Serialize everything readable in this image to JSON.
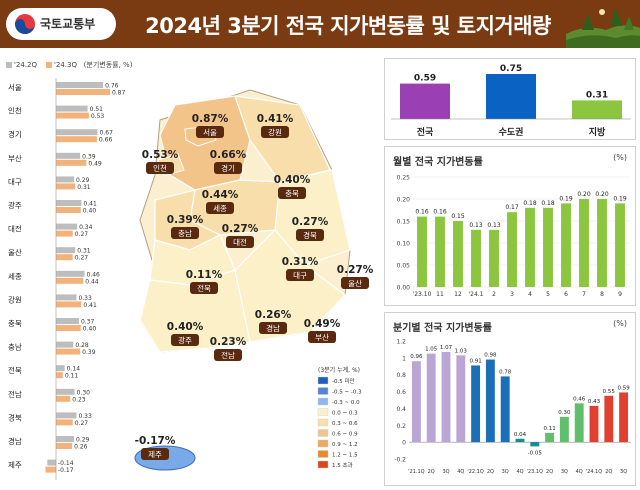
{
  "header": {
    "ministry": "국토교통부",
    "title": "2024년 3분기 전국 지가변동률 및 토지거래량",
    "colors": {
      "background": "#7a3a12",
      "title_text": "#ffffff"
    }
  },
  "left_legend": {
    "items": [
      {
        "label": "'24.2Q",
        "color": "#bdbdbd"
      },
      {
        "label": "'24.3Q",
        "color": "#f2b27a"
      },
      {
        "label": "(분기변동률, %)",
        "color": ""
      }
    ]
  },
  "chart_data": [
    {
      "type": "bar",
      "orientation": "horizontal",
      "categories": [
        "서울",
        "인천",
        "경기",
        "부산",
        "대구",
        "광주",
        "대전",
        "울산",
        "세종",
        "강원",
        "충북",
        "충남",
        "전북",
        "전남",
        "경북",
        "경남",
        "제주"
      ],
      "series": [
        {
          "name": "'24.2Q",
          "values": [
            0.76,
            0.51,
            0.67,
            0.39,
            0.29,
            0.41,
            0.34,
            0.31,
            0.46,
            0.33,
            0.37,
            0.28,
            0.14,
            0.3,
            0.33,
            0.29,
            -0.14
          ]
        },
        {
          "name": "'24.3Q",
          "values": [
            0.87,
            0.53,
            0.66,
            0.49,
            0.31,
            0.4,
            0.27,
            0.27,
            0.44,
            0.41,
            0.4,
            0.39,
            0.11,
            0.23,
            0.27,
            0.26,
            -0.17
          ]
        }
      ],
      "colors": [
        "#bdbdbd",
        "#f2b27a"
      ],
      "xlim": [
        -0.2,
        0.9
      ]
    },
    {
      "type": "map",
      "regions": [
        {
          "name": "서울",
          "value": 0.87
        },
        {
          "name": "인천",
          "value": 0.53
        },
        {
          "name": "경기",
          "value": 0.66
        },
        {
          "name": "강원",
          "value": 0.41
        },
        {
          "name": "세종",
          "value": 0.44
        },
        {
          "name": "충북",
          "value": 0.4
        },
        {
          "name": "충남",
          "value": 0.39
        },
        {
          "name": "대전",
          "value": 0.27
        },
        {
          "name": "경북",
          "value": 0.27
        },
        {
          "name": "대구",
          "value": 0.31
        },
        {
          "name": "전북",
          "value": 0.11
        },
        {
          "name": "울산",
          "value": 0.27
        },
        {
          "name": "광주",
          "value": 0.4
        },
        {
          "name": "경남",
          "value": 0.26
        },
        {
          "name": "부산",
          "value": 0.49
        },
        {
          "name": "전남",
          "value": 0.23
        },
        {
          "name": "제주",
          "value": -0.17
        }
      ],
      "value_suffix": "%",
      "legend_title": "(3분기 누계, %)",
      "legend": [
        {
          "label": "-0.5 미만",
          "color": "#1f5fbf"
        },
        {
          "label": "-0.5 ~ -0.3",
          "color": "#4f86d9"
        },
        {
          "label": "-0.3 ~ 0.0",
          "color": "#8fb8ee"
        },
        {
          "label": "0.0 ~ 0.3",
          "color": "#fcf0c8"
        },
        {
          "label": "0.3 ~ 0.6",
          "color": "#f8deaa"
        },
        {
          "label": "0.6 ~ 0.9",
          "color": "#f2c48a"
        },
        {
          "label": "0.9 ~ 1.2",
          "color": "#eeaa5c"
        },
        {
          "label": "1.2 ~ 1.5",
          "color": "#e98a2a"
        },
        {
          "label": "1.5 초과",
          "color": "#d9481a"
        }
      ]
    },
    {
      "type": "bar",
      "categories": [
        "전국",
        "수도권",
        "지방"
      ],
      "values": [
        0.59,
        0.75,
        0.31
      ],
      "colors": [
        "#9b3fb5",
        "#0a63c2",
        "#8cc63f"
      ],
      "ylim": [
        0,
        0.8
      ]
    },
    {
      "type": "bar",
      "title": "월별 전국 지가변동률",
      "unit": "(%)",
      "categories": [
        "'23.10",
        "11",
        "12",
        "'24.1",
        "2",
        "3",
        "4",
        "5",
        "6",
        "7",
        "8",
        "9"
      ],
      "values": [
        0.16,
        0.16,
        0.15,
        0.13,
        0.13,
        0.17,
        0.18,
        0.18,
        0.19,
        0.2,
        0.2,
        0.19
      ],
      "color": "#8cc63f",
      "ylim": [
        0,
        0.25
      ],
      "yticks": [
        "0.00",
        "0.05",
        "0.10",
        "0.15",
        "0.20",
        "0.25"
      ],
      "grid": true
    },
    {
      "type": "bar",
      "title": "분기별 전국 지가변동률",
      "unit": "(%)",
      "categories": [
        "'21.1Q",
        "2Q",
        "3Q",
        "4Q",
        "'22.1Q",
        "2Q",
        "3Q",
        "4Q",
        "'23.1Q",
        "2Q",
        "3Q",
        "4Q",
        "'24.1Q",
        "2Q",
        "3Q"
      ],
      "values": [
        0.96,
        1.05,
        1.07,
        1.03,
        0.91,
        0.98,
        0.78,
        0.04,
        -0.05,
        0.11,
        0.3,
        0.46,
        0.43,
        0.55,
        0.59
      ],
      "colors": [
        "#b9a6d4",
        "#b9a6d4",
        "#b9a6d4",
        "#b9a6d4",
        "#1b6fb8",
        "#1b6fb8",
        "#1b6fb8",
        "#138f8f",
        "#138f8f",
        "#5fbf6a",
        "#5fbf6a",
        "#5fbf6a",
        "#e04030",
        "#e04030",
        "#e04030"
      ],
      "ylim": [
        -0.2,
        1.2
      ],
      "yticks": [
        "-0.2",
        "0",
        "0.2",
        "0.4",
        "0.6",
        "0.8",
        "1",
        "1.2"
      ]
    }
  ]
}
